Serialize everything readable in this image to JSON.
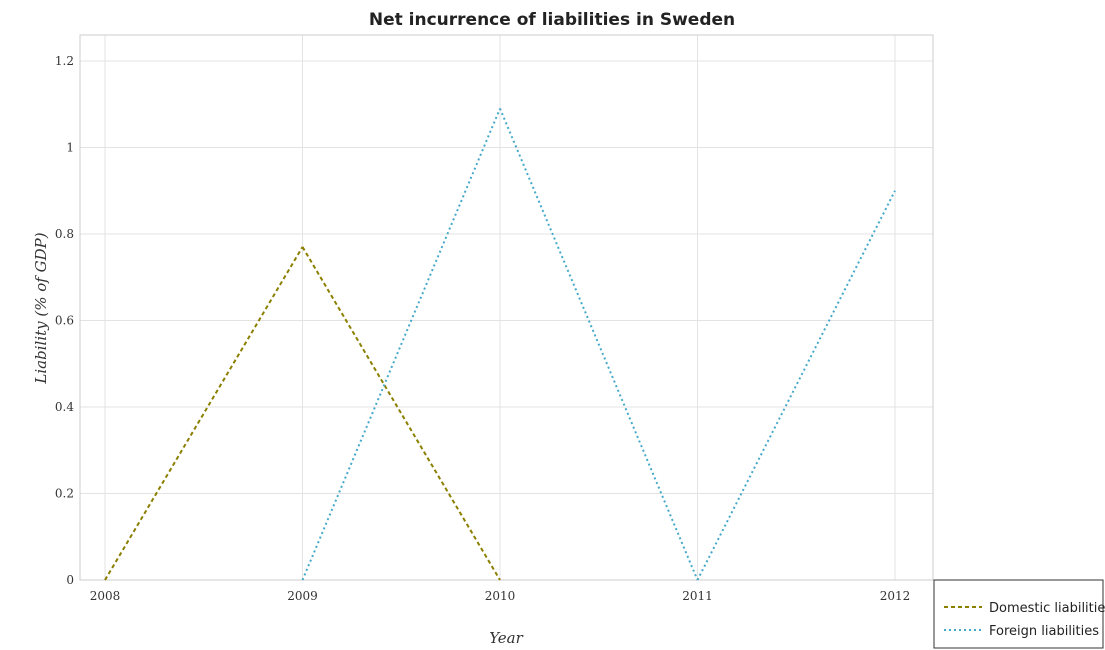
{
  "chart_data": {
    "type": "line",
    "title": "Net incurrence of liabilities in Sweden",
    "xlabel": "Year",
    "ylabel": "Liability (% of GDP)",
    "categories": [
      "2008",
      "2009",
      "2010",
      "2011",
      "2012"
    ],
    "ylim": [
      0,
      1.26
    ],
    "yticks": [
      0,
      0.2,
      0.4,
      0.6,
      0.8,
      1.0,
      1.2
    ],
    "ytick_labels": [
      "0",
      "0.2",
      "0.4",
      "0.6",
      "0.8",
      "1",
      "1.2"
    ],
    "grid": true,
    "legend_position": "bottom-right",
    "series": [
      {
        "name": "Domestic liabilities",
        "color": "#8b7f00",
        "style": "dashed",
        "values": [
          0,
          0.77,
          0,
          0,
          0
        ]
      },
      {
        "name": "Foreign liabilities",
        "color": "#44a9c9",
        "style": "dotted",
        "values": [
          0,
          0,
          1.09,
          0,
          0.9
        ]
      }
    ]
  }
}
